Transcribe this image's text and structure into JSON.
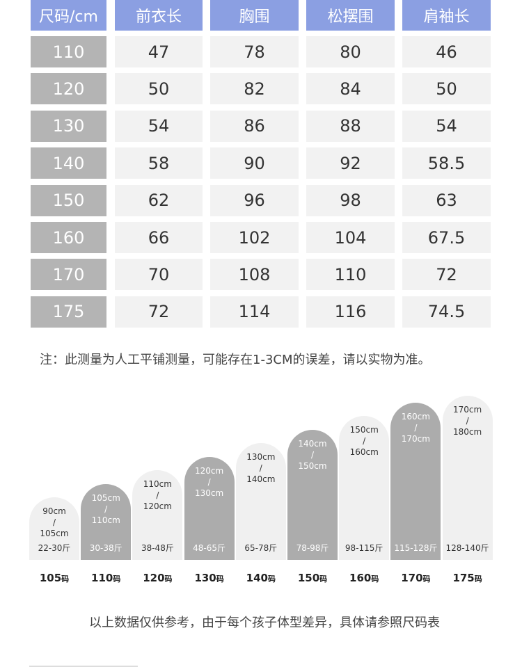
{
  "table": {
    "header": [
      "尺码/cm",
      "前衣长",
      "胸围",
      "松摆围",
      "肩袖长"
    ],
    "rows": [
      [
        "110",
        "47",
        "78",
        "80",
        "46"
      ],
      [
        "120",
        "50",
        "82",
        "84",
        "50"
      ],
      [
        "130",
        "54",
        "86",
        "88",
        "54"
      ],
      [
        "140",
        "58",
        "90",
        "92",
        "58.5"
      ],
      [
        "150",
        "62",
        "96",
        "98",
        "63"
      ],
      [
        "160",
        "66",
        "102",
        "104",
        "67.5"
      ],
      [
        "170",
        "70",
        "108",
        "110",
        "72"
      ],
      [
        "175",
        "72",
        "114",
        "116",
        "74.5"
      ]
    ]
  },
  "note": "注：此测量为人工平铺测量，可能存在1-3CM的误差，请以实物为准。",
  "sizes": [
    {
      "height": [
        "90cm",
        "/",
        "105cm"
      ],
      "weight": "22-30斤",
      "size": "105",
      "unit": "码"
    },
    {
      "height": [
        "105cm",
        "/",
        "110cm"
      ],
      "weight": "30-38斤",
      "size": "110",
      "unit": "码"
    },
    {
      "height": [
        "110cm",
        "/",
        "120cm"
      ],
      "weight": "38-48斤",
      "size": "120",
      "unit": "码"
    },
    {
      "height": [
        "120cm",
        "/",
        "130cm"
      ],
      "weight": "48-65斤",
      "size": "130",
      "unit": "码"
    },
    {
      "height": [
        "130cm",
        "/",
        "140cm"
      ],
      "weight": "65-78斤",
      "size": "140",
      "unit": "码"
    },
    {
      "height": [
        "140cm",
        "/",
        "150cm"
      ],
      "weight": "78-98斤",
      "size": "150",
      "unit": "码"
    },
    {
      "height": [
        "150cm",
        "/",
        "160cm"
      ],
      "weight": "98-115斤",
      "size": "160",
      "unit": "码"
    },
    {
      "height": [
        "160cm",
        "/",
        "170cm"
      ],
      "weight": "115-128斤",
      "size": "170",
      "unit": "码"
    },
    {
      "height": [
        "170cm",
        "/",
        "180cm"
      ],
      "weight": "128-140斤",
      "size": "175",
      "unit": "码"
    }
  ],
  "footer": "以上数据仅供参考，由于每个孩子体型差异，具体请参照尺码表"
}
